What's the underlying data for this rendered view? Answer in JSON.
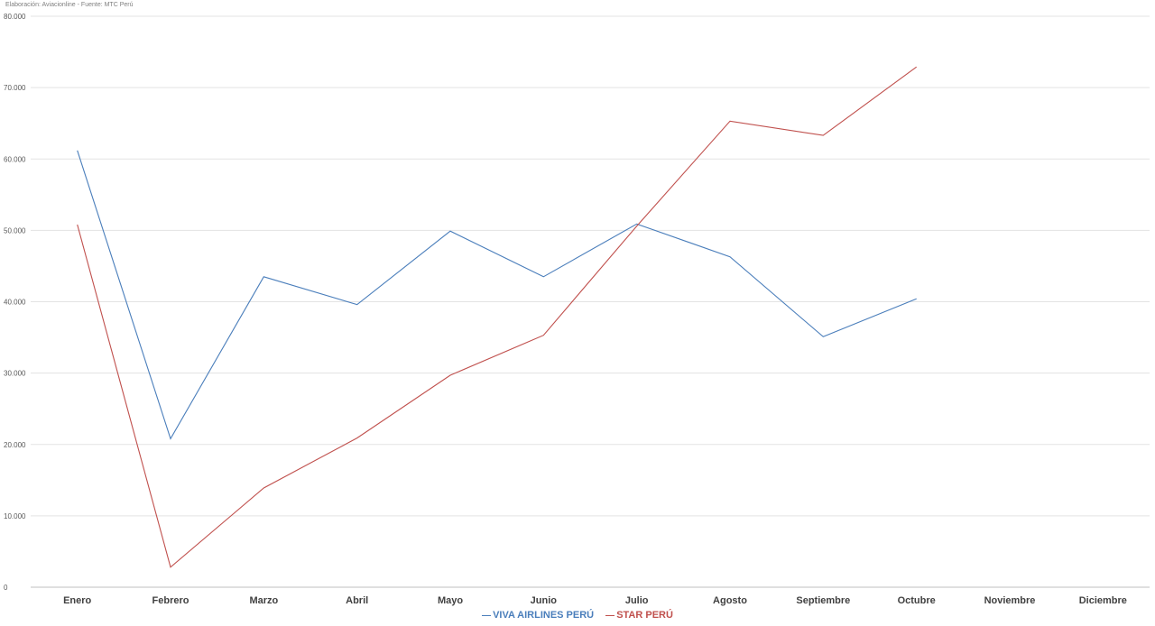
{
  "source_note": "Elaboración: Aviacionline  -  Fuente: MTC Perú",
  "chart_data": {
    "type": "line",
    "categories": [
      "Enero",
      "Febrero",
      "Marzo",
      "Abril",
      "Mayo",
      "Junio",
      "Julio",
      "Agosto",
      "Septiembre",
      "Octubre",
      "Noviembre",
      "Diciembre"
    ],
    "series": [
      {
        "name": "VIVA AIRLINES PERÚ",
        "color": "#4a7ebb",
        "values": [
          61200,
          20800,
          43500,
          39600,
          49900,
          43500,
          50900,
          46300,
          35100,
          40400,
          null,
          null
        ]
      },
      {
        "name": "STAR PERÚ",
        "color": "#c0504d",
        "values": [
          50800,
          2800,
          13900,
          20900,
          29700,
          35300,
          50600,
          65300,
          63300,
          72900,
          null,
          null
        ]
      }
    ],
    "ylim": [
      0,
      80000
    ],
    "yticks": [
      0,
      10000,
      20000,
      30000,
      40000,
      50000,
      60000,
      70000,
      80000
    ],
    "ytick_labels": [
      "0",
      "10.000",
      "20.000",
      "30.000",
      "40.000",
      "50.000",
      "60.000",
      "70.000",
      "80.000"
    ],
    "grid": true,
    "legend_position": "bottom",
    "title": "",
    "xlabel": "",
    "ylabel": ""
  }
}
